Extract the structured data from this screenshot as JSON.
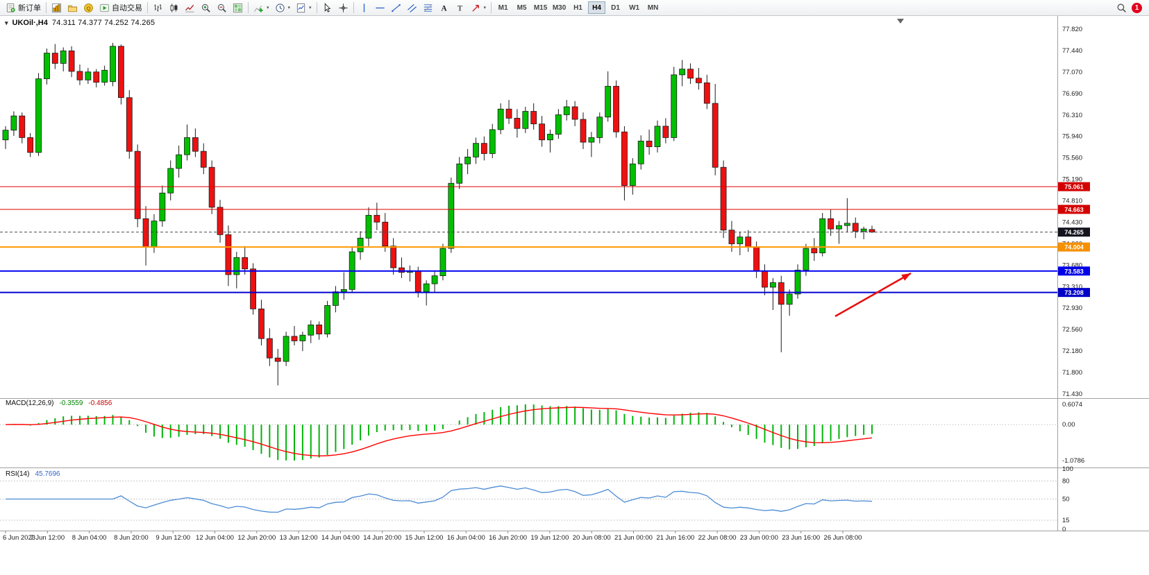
{
  "toolbar": {
    "new_order": {
      "label": "新订单",
      "icon": "new-order-icon"
    },
    "autotrading": {
      "label": "自动交易",
      "icon": "autotrading-icon"
    },
    "caret_glyph": "▾",
    "icon_groups": {
      "left": [
        "new-chart-icon",
        "profiles-icon",
        "mql-community-icon"
      ],
      "chart_types": [
        "ohlc-bars-icon",
        "candlestick-icon",
        "line-chart-icon"
      ],
      "zoom": [
        "zoom-in-icon",
        "zoom-out-icon"
      ],
      "windows": [
        "tile-windows-icon"
      ],
      "dropdowns": [
        "indicators-icon",
        "periods-icon",
        "templates-icon"
      ],
      "pointers": [
        "cursor-icon",
        "crosshair-icon"
      ],
      "drawing": [
        "vertical-line-icon",
        "horizontal-line-icon",
        "trendline-icon",
        "channel-icon",
        "fibonacci-icon",
        "text-icon",
        "text-label-icon",
        "arrow-objects-icon"
      ]
    },
    "timeframes": [
      "M1",
      "M5",
      "M15",
      "M30",
      "H1",
      "H4",
      "D1",
      "W1",
      "MN"
    ],
    "active_timeframe": "H4",
    "notification_badge": "1"
  },
  "chart": {
    "symbol": "UKOil·,H4",
    "ohlc_text": "74.311 74.377 74.252 74.265",
    "dropdown_glyph": "▾"
  },
  "indicators": {
    "macd": {
      "label": "MACD(12,26,9)",
      "value_main": "-0.3559",
      "value_signal": "-0.4856"
    },
    "rsi": {
      "label": "RSI(14)",
      "value": "45.7696"
    }
  },
  "chart_data": {
    "type": "candlestick",
    "symbol": "UKOil",
    "timeframe": "H4",
    "title": "UKOil·,H4 74.311 74.377 74.252 74.265",
    "ohlc_display": {
      "open": 74.311,
      "high": 74.377,
      "low": 74.252,
      "close": 74.265
    },
    "y_range": [
      71.43,
      77.82
    ],
    "y_axis_ticks": [
      "77.820",
      "77.440",
      "77.070",
      "76.690",
      "76.310",
      "75.940",
      "75.560",
      "75.190",
      "74.810",
      "74.430",
      "74.060",
      "73.680",
      "73.310",
      "72.930",
      "72.560",
      "72.180",
      "71.800",
      "71.430"
    ],
    "x_axis_ticks": [
      "6 Jun 2023",
      "7 Jun 12:00",
      "8 Jun 04:00",
      "8 Jun 20:00",
      "9 Jun 12:00",
      "12 Jun 04:00",
      "12 Jun 20:00",
      "13 Jun 12:00",
      "14 Jun 04:00",
      "14 Jun 20:00",
      "15 Jun 12:00",
      "16 Jun 04:00",
      "16 Jun 20:00",
      "19 Jun 12:00",
      "20 Jun 08:00",
      "21 Jun 00:00",
      "21 Jun 16:00",
      "22 Jun 08:00",
      "23 Jun 00:00",
      "23 Jun 16:00",
      "26 Jun 08:00"
    ],
    "candles": [
      [
        75.88,
        76.12,
        75.72,
        76.05
      ],
      [
        76.05,
        76.38,
        75.95,
        76.3
      ],
      [
        76.3,
        76.36,
        75.82,
        75.92
      ],
      [
        75.92,
        76.0,
        75.58,
        75.66
      ],
      [
        75.66,
        77.05,
        75.6,
        76.95
      ],
      [
        76.95,
        77.48,
        76.85,
        77.4
      ],
      [
        77.4,
        77.56,
        77.12,
        77.22
      ],
      [
        77.22,
        77.5,
        77.08,
        77.44
      ],
      [
        77.44,
        77.52,
        76.98,
        77.08
      ],
      [
        77.08,
        77.2,
        76.84,
        76.93
      ],
      [
        76.93,
        77.14,
        76.86,
        77.07
      ],
      [
        77.07,
        77.12,
        76.8,
        76.89
      ],
      [
        76.89,
        77.18,
        76.83,
        77.1
      ],
      [
        76.9,
        77.58,
        76.82,
        77.52
      ],
      [
        77.52,
        77.55,
        76.5,
        76.62
      ],
      [
        76.62,
        76.75,
        75.55,
        75.68
      ],
      [
        75.68,
        75.8,
        74.35,
        74.5
      ],
      [
        74.5,
        74.72,
        73.68,
        74.0
      ],
      [
        74.0,
        74.58,
        73.9,
        74.46
      ],
      [
        74.46,
        75.08,
        74.36,
        74.95
      ],
      [
        74.95,
        75.52,
        74.82,
        75.38
      ],
      [
        75.38,
        75.78,
        75.22,
        75.62
      ],
      [
        75.62,
        76.15,
        75.52,
        75.92
      ],
      [
        75.92,
        76.08,
        75.58,
        75.68
      ],
      [
        75.68,
        75.82,
        75.28,
        75.4
      ],
      [
        75.4,
        75.52,
        74.58,
        74.7
      ],
      [
        74.7,
        74.83,
        74.08,
        74.22
      ],
      [
        74.22,
        74.38,
        73.32,
        73.52
      ],
      [
        73.52,
        73.92,
        73.28,
        73.82
      ],
      [
        73.82,
        74.02,
        73.52,
        73.62
      ],
      [
        73.62,
        73.72,
        72.82,
        72.92
      ],
      [
        72.92,
        73.08,
        72.28,
        72.4
      ],
      [
        72.4,
        72.58,
        71.92,
        72.06
      ],
      [
        72.06,
        72.22,
        71.58,
        72.0
      ],
      [
        72.0,
        72.52,
        71.92,
        72.44
      ],
      [
        72.44,
        72.62,
        72.28,
        72.36
      ],
      [
        72.36,
        72.52,
        72.18,
        72.46
      ],
      [
        72.46,
        72.72,
        72.32,
        72.64
      ],
      [
        72.64,
        72.7,
        72.38,
        72.48
      ],
      [
        72.48,
        73.06,
        72.42,
        72.98
      ],
      [
        72.98,
        73.32,
        72.86,
        73.22
      ],
      [
        73.22,
        73.56,
        73.08,
        73.26
      ],
      [
        73.26,
        74.0,
        73.2,
        73.92
      ],
      [
        73.92,
        74.28,
        73.78,
        74.16
      ],
      [
        74.16,
        74.7,
        74.02,
        74.56
      ],
      [
        74.56,
        74.78,
        74.3,
        74.44
      ],
      [
        74.44,
        74.6,
        73.92,
        74.02
      ],
      [
        74.02,
        74.16,
        73.52,
        73.64
      ],
      [
        73.64,
        73.82,
        73.46,
        73.56
      ],
      [
        73.56,
        73.68,
        73.4,
        73.58
      ],
      [
        73.58,
        73.66,
        73.12,
        73.22
      ],
      [
        73.22,
        73.42,
        72.98,
        73.36
      ],
      [
        73.36,
        73.58,
        73.22,
        73.5
      ],
      [
        73.5,
        74.06,
        73.42,
        73.98
      ],
      [
        73.98,
        75.22,
        73.9,
        75.12
      ],
      [
        75.12,
        75.58,
        75.02,
        75.46
      ],
      [
        75.46,
        75.72,
        75.28,
        75.58
      ],
      [
        75.58,
        75.92,
        75.46,
        75.82
      ],
      [
        75.82,
        75.94,
        75.52,
        75.64
      ],
      [
        75.64,
        76.16,
        75.56,
        76.06
      ],
      [
        76.06,
        76.52,
        75.98,
        76.42
      ],
      [
        76.42,
        76.58,
        76.16,
        76.26
      ],
      [
        76.26,
        76.42,
        75.92,
        76.08
      ],
      [
        76.08,
        76.46,
        76.0,
        76.38
      ],
      [
        76.38,
        76.52,
        76.06,
        76.16
      ],
      [
        76.16,
        76.3,
        75.76,
        75.88
      ],
      [
        75.88,
        76.06,
        75.66,
        75.98
      ],
      [
        75.98,
        76.42,
        75.9,
        76.32
      ],
      [
        76.32,
        76.58,
        76.22,
        76.46
      ],
      [
        76.46,
        76.56,
        76.12,
        76.24
      ],
      [
        76.24,
        76.36,
        75.72,
        75.84
      ],
      [
        75.84,
        76.02,
        75.58,
        75.92
      ],
      [
        75.92,
        76.36,
        75.82,
        76.28
      ],
      [
        76.28,
        77.08,
        76.2,
        76.82
      ],
      [
        76.82,
        76.92,
        75.92,
        76.02
      ],
      [
        76.02,
        76.12,
        74.82,
        75.08
      ],
      [
        75.08,
        75.56,
        74.92,
        75.46
      ],
      [
        75.46,
        75.96,
        75.36,
        75.86
      ],
      [
        75.86,
        76.06,
        75.62,
        75.76
      ],
      [
        75.76,
        76.22,
        75.66,
        76.12
      ],
      [
        76.12,
        76.26,
        75.82,
        75.92
      ],
      [
        75.92,
        77.16,
        75.86,
        77.02
      ],
      [
        77.02,
        77.28,
        76.82,
        77.12
      ],
      [
        77.12,
        77.22,
        76.86,
        76.96
      ],
      [
        76.96,
        77.14,
        76.76,
        76.88
      ],
      [
        76.88,
        77.02,
        76.42,
        76.52
      ],
      [
        76.52,
        76.86,
        75.26,
        75.4
      ],
      [
        75.4,
        75.52,
        74.16,
        74.3
      ],
      [
        74.3,
        74.46,
        73.92,
        74.06
      ],
      [
        74.06,
        74.26,
        73.86,
        74.18
      ],
      [
        74.18,
        74.3,
        73.92,
        74.0
      ],
      [
        74.0,
        74.1,
        73.46,
        73.58
      ],
      [
        73.58,
        73.7,
        73.16,
        73.3
      ],
      [
        73.3,
        73.46,
        72.9,
        73.38
      ],
      [
        73.38,
        73.5,
        72.16,
        73.0
      ],
      [
        73.0,
        73.26,
        72.8,
        73.18
      ],
      [
        73.18,
        73.7,
        73.1,
        73.6
      ],
      [
        73.6,
        74.06,
        73.5,
        73.98
      ],
      [
        73.98,
        74.16,
        73.76,
        73.9
      ],
      [
        73.9,
        74.6,
        73.84,
        74.5
      ],
      [
        74.5,
        74.66,
        74.2,
        74.32
      ],
      [
        74.32,
        74.46,
        74.06,
        74.38
      ],
      [
        74.38,
        74.86,
        74.26,
        74.42
      ],
      [
        74.42,
        74.52,
        74.16,
        74.28
      ],
      [
        74.28,
        74.36,
        74.14,
        74.32
      ],
      [
        74.311,
        74.377,
        74.252,
        74.265
      ]
    ],
    "horizontal_levels": [
      {
        "label": "75.061",
        "price": 75.061,
        "color": "#e00000",
        "width": 1,
        "dash": null,
        "tag_bg": "#d40000"
      },
      {
        "label": "74.663",
        "price": 74.663,
        "color": "#e00000",
        "width": 1,
        "dash": null,
        "tag_bg": "#d40000"
      },
      {
        "label": "74.265",
        "price": 74.265,
        "color": "#4a4a4a",
        "width": 1,
        "dash": "4,3",
        "tag_bg": "#14141e"
      },
      {
        "label": "74.004",
        "price": 74.004,
        "color": "#ff9800",
        "width": 2,
        "dash": null,
        "tag_bg": "#f59000"
      },
      {
        "label": "73.583",
        "price": 73.583,
        "color": "#0000f0",
        "width": 2,
        "dash": null,
        "tag_bg": "#0000e8"
      },
      {
        "label": "73.208",
        "price": 73.208,
        "color": "#0000d0",
        "width": 2,
        "dash": null,
        "tag_bg": "#0000c8"
      }
    ],
    "indicators": [
      {
        "type": "MACD",
        "params": [
          12,
          26,
          9
        ],
        "display_values": [
          -0.3559,
          -0.4856
        ],
        "y_axis_ticks": [
          "0.6074",
          "0.00",
          "-1.0786"
        ],
        "y_range": [
          -1.0786,
          0.6074
        ]
      },
      {
        "type": "RSI",
        "params": [
          14
        ],
        "display_value": 45.7696,
        "y_axis_ticks": [
          "100",
          "80",
          "50",
          "15",
          "0"
        ],
        "levels": [
          80,
          50,
          15
        ],
        "y_range": [
          0,
          100
        ]
      }
    ],
    "annotations": [
      {
        "type": "arrow",
        "from": [
          1203,
          456
        ],
        "to": [
          1312,
          394
        ],
        "color": "#e81010"
      }
    ]
  },
  "colors": {
    "bull": "#00c000",
    "bear": "#ee1111",
    "wick": "#1a1a1a",
    "macd_hist": "#00b40a",
    "macd_signal": "#ff0000",
    "rsi_line": "#4a8bd4",
    "panel_border": "#a0a0a0",
    "axis_text": "#1b1b1b",
    "badge_bg": "#e1001e",
    "shift_marker": "#666666"
  }
}
